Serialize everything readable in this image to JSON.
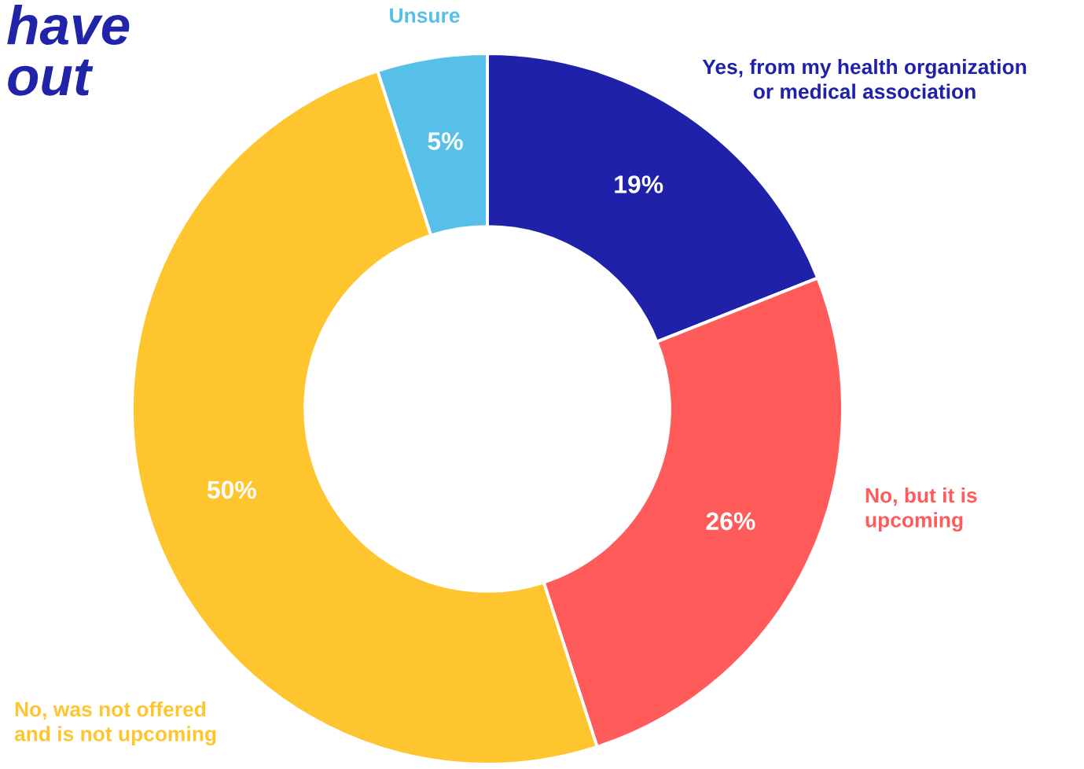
{
  "chart_data": {
    "type": "donut",
    "title": "have\nout",
    "categories": [
      "Yes, from my health organization\nor medical association",
      "No, but it is\nupcoming",
      "No, was not offered\nand is not upcoming",
      "Unsure"
    ],
    "values": [
      19,
      26,
      50,
      5
    ],
    "colors": [
      "#1f22a8",
      "#ff5b5b",
      "#ffc52e",
      "#56c0e8"
    ],
    "value_labels": [
      "19%",
      "26%",
      "50%",
      "5%"
    ]
  }
}
